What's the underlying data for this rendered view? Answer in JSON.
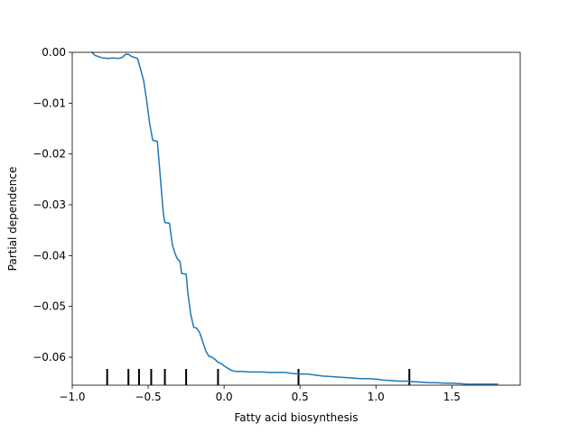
{
  "chart_data": {
    "type": "line",
    "title": "",
    "xlabel": "Fatty acid biosynthesis",
    "ylabel": "Partial dependence",
    "xlim": [
      -1.0,
      1.95
    ],
    "ylim": [
      -0.0655,
      0.0
    ],
    "grid": false,
    "xticks": [
      -1.0,
      -0.5,
      0.0,
      0.5,
      1.0,
      1.5
    ],
    "xtick_labels": [
      "−1.0",
      "−0.5",
      "0.0",
      "0.5",
      "1.0",
      "1.5"
    ],
    "yticks": [
      0.0,
      -0.01,
      -0.02,
      -0.03,
      -0.04,
      -0.05,
      -0.06
    ],
    "ytick_labels": [
      "0.00",
      "−0.01",
      "−0.02",
      "−0.03",
      "−0.04",
      "−0.05",
      "−0.06"
    ],
    "line_color": "#1f77b4",
    "series": [
      {
        "x": [
          -0.87,
          -0.85,
          -0.8,
          -0.76,
          -0.73,
          -0.7,
          -0.67,
          -0.65,
          -0.63,
          -0.61,
          -0.57,
          -0.53,
          -0.51,
          -0.49,
          -0.47,
          -0.46,
          -0.44,
          -0.42,
          -0.4,
          -0.39,
          -0.37,
          -0.36,
          -0.34,
          -0.32,
          -0.31,
          -0.29,
          -0.28,
          -0.26,
          -0.25,
          -0.24,
          -0.22,
          -0.2,
          -0.18,
          -0.16,
          -0.14,
          -0.12,
          -0.1,
          -0.08,
          -0.06,
          -0.04,
          -0.02,
          0.0,
          0.02,
          0.05,
          0.08,
          0.12,
          0.16,
          0.2,
          0.25,
          0.3,
          0.35,
          0.4,
          0.45,
          0.5,
          0.55,
          0.6,
          0.65,
          0.7,
          0.75,
          0.8,
          0.85,
          0.9,
          0.95,
          1.0,
          1.05,
          1.1,
          1.15,
          1.2,
          1.25,
          1.3,
          1.35,
          1.4,
          1.45,
          1.5,
          1.55,
          1.6,
          1.65,
          1.7,
          1.75,
          1.8
        ],
        "y": [
          0.0,
          -0.0006,
          -0.0011,
          -0.0012,
          -0.0011,
          -0.0012,
          -0.001,
          -0.0004,
          -0.0004,
          -0.0008,
          -0.0012,
          -0.0055,
          -0.0095,
          -0.014,
          -0.0173,
          -0.0174,
          -0.0175,
          -0.0245,
          -0.0318,
          -0.0335,
          -0.0336,
          -0.0336,
          -0.038,
          -0.0398,
          -0.0405,
          -0.0412,
          -0.0435,
          -0.0436,
          -0.0436,
          -0.047,
          -0.0515,
          -0.0541,
          -0.0543,
          -0.0552,
          -0.057,
          -0.0588,
          -0.0598,
          -0.06,
          -0.0604,
          -0.061,
          -0.0612,
          -0.0617,
          -0.0621,
          -0.0626,
          -0.0628,
          -0.0628,
          -0.0629,
          -0.0629,
          -0.0629,
          -0.063,
          -0.063,
          -0.063,
          -0.0632,
          -0.0633,
          -0.0633,
          -0.0635,
          -0.0637,
          -0.0638,
          -0.0639,
          -0.064,
          -0.0641,
          -0.0642,
          -0.0642,
          -0.0643,
          -0.0645,
          -0.0646,
          -0.0647,
          -0.0647,
          -0.0648,
          -0.0649,
          -0.065,
          -0.065,
          -0.0651,
          -0.0651,
          -0.0652,
          -0.0653,
          -0.0653,
          -0.0653,
          -0.0653,
          -0.0653
        ]
      }
    ],
    "rug_deciles": [
      -0.77,
      -0.63,
      -0.56,
      -0.48,
      -0.39,
      -0.25,
      -0.04,
      0.49,
      1.22
    ]
  }
}
